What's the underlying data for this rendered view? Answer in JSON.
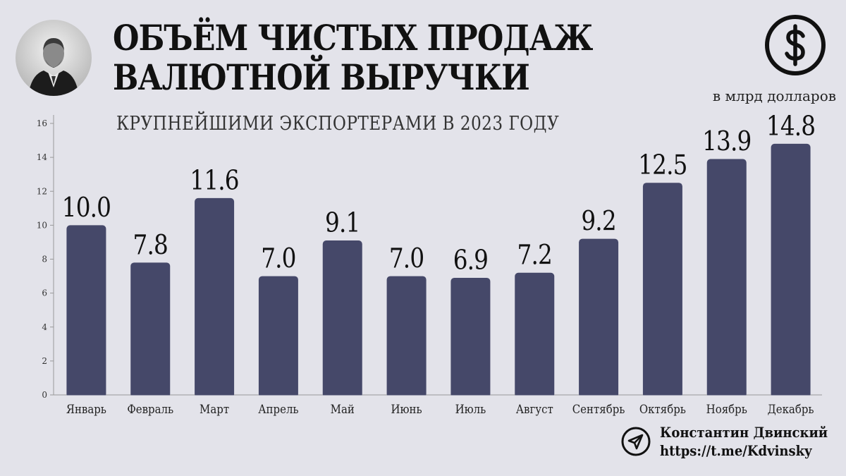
{
  "header": {
    "title_line1": "ОБЪЁМ ЧИСТЫХ ПРОДАЖ",
    "title_line2": "ВАЛЮТНОЙ ВЫРУЧКИ",
    "subtitle": "КРУПНЕЙШИМИ ЭКСПОРТЕРАМИ В 2023 ГОДУ",
    "units": "в млрд долларов",
    "dollar_icon": "dollar-circle-icon"
  },
  "footer": {
    "author": "Константин Двинский",
    "link": "https://t.me/Kdvinsky",
    "icon": "telegram-icon"
  },
  "colors": {
    "bar": "#454869",
    "background": "#e3e3ea",
    "text": "#111111"
  },
  "chart_data": {
    "type": "bar",
    "title": "ОБЪЁМ ЧИСТЫХ ПРОДАЖ ВАЛЮТНОЙ ВЫРУЧКИ",
    "subtitle": "КРУПНЕЙШИМИ ЭКСПОРТЕРАМИ В 2023 ГОДУ",
    "ylabel": "в млрд долларов",
    "categories": [
      "Январь",
      "Февраль",
      "Март",
      "Апрель",
      "Май",
      "Июнь",
      "Июль",
      "Август",
      "Сентябрь",
      "Октябрь",
      "Ноябрь",
      "Декабрь"
    ],
    "values": [
      10.0,
      7.8,
      11.6,
      7.0,
      9.1,
      7.0,
      6.9,
      7.2,
      9.2,
      12.5,
      13.9,
      14.8
    ],
    "value_labels": [
      "10.0",
      "7.8",
      "11.6",
      "7.0",
      "9.1",
      "7.0",
      "6.9",
      "7.2",
      "9.2",
      "12.5",
      "13.9",
      "14.8"
    ],
    "yticks": [
      "0",
      "2",
      "4",
      "6",
      "8",
      "10",
      "12",
      "14",
      "16"
    ],
    "ylim": [
      0,
      16
    ],
    "grid": false
  }
}
